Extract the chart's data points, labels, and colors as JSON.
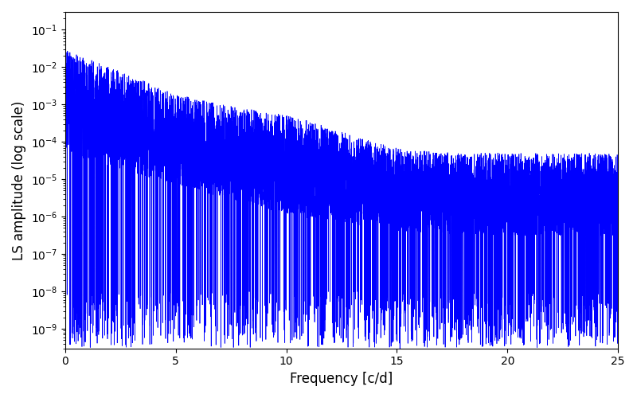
{
  "xlabel": "Frequency [c/d]",
  "ylabel": "LS amplitude (log scale)",
  "xlim": [
    0,
    25
  ],
  "ylim_log": [
    3e-10,
    0.3
  ],
  "line_color": "#0000ff",
  "line_width": 0.5,
  "background_color": "#ffffff",
  "figsize": [
    8.0,
    5.0
  ],
  "dpi": 100,
  "freq_max": 25.0,
  "n_points": 8000,
  "seed": 1234
}
